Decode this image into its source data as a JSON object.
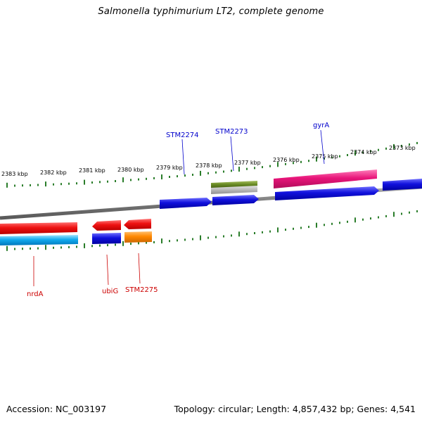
{
  "title": "Salmonella typhimurium LT2, complete genome",
  "footer": {
    "accession": "Accession: NC_003197",
    "summary": "Topology: circular; Length: 4,857,432 bp; Genes: 4,541"
  },
  "colors": {
    "backbone": "#777777",
    "tick": "#2a7d2a",
    "forward_gene_label": "#0000cc",
    "reverse_gene_label": "#cc0000",
    "red": "#ee1111",
    "cyan": "#11aaee",
    "blue": "#1111dd",
    "orange": "#ff8800",
    "olive": "#668822",
    "pink": "#e8157a",
    "grey": "#b8b8b8"
  },
  "scale_labels": [
    "2383 kbp",
    "2382 kbp",
    "2381 kbp",
    "2380 kbp",
    "2379 kbp",
    "2378 kbp",
    "2377 kbp",
    "2376 kbp",
    "2375 kbp",
    "2374 kbp",
    "2373 kbp"
  ],
  "gene_labels": [
    {
      "name": "STM2274",
      "strand": "forward"
    },
    {
      "name": "STM2273",
      "strand": "forward"
    },
    {
      "name": "gyrA",
      "strand": "forward"
    },
    {
      "name": "nrdA",
      "strand": "reverse"
    },
    {
      "name": "ubiG",
      "strand": "reverse"
    },
    {
      "name": "STM2275",
      "strand": "reverse"
    }
  ]
}
